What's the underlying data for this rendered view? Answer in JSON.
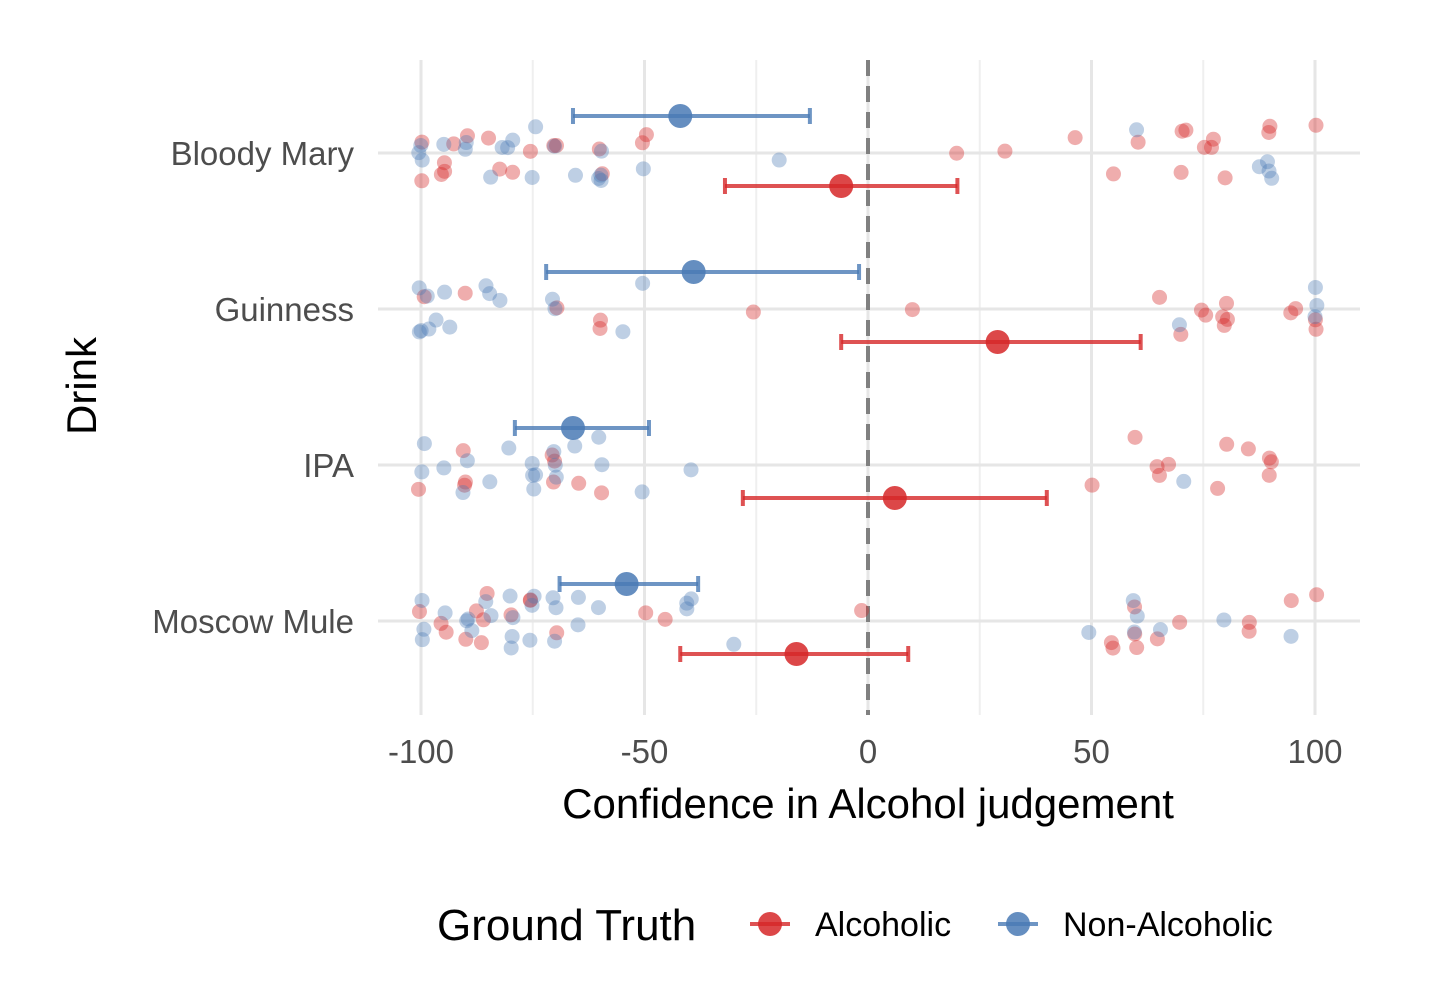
{
  "chart_data": {
    "type": "scatter",
    "xlabel": "Confidence in Alcohol judgement",
    "ylabel": "Drink",
    "xlim": [
      -102,
      110
    ],
    "x_ticks": [
      -100,
      -50,
      0,
      50,
      100
    ],
    "x_tick_labels": [
      "-100",
      "-50",
      "0",
      "50",
      "100"
    ],
    "categories": [
      "Bloody Mary",
      "Guinness",
      "IPA",
      "Moscow Mule"
    ],
    "reference_line": {
      "x": 0,
      "style": "dashed"
    },
    "grid": true,
    "legend": {
      "title": "Ground Truth",
      "position": "bottom"
    },
    "series": [
      {
        "name": "Alcoholic",
        "color": "#d62728",
        "summary": [
          {
            "category": "Bloody Mary",
            "mean": -6,
            "low": -32,
            "high": 20
          },
          {
            "category": "Guinness",
            "mean": 29,
            "low": -6,
            "high": 61
          },
          {
            "category": "IPA",
            "mean": 6,
            "low": -28,
            "high": 40
          },
          {
            "category": "Moscow Mule",
            "mean": -16,
            "low": -42,
            "high": 9
          }
        ],
        "points": [
          {
            "category": "Bloody Mary",
            "values": [
              -100,
              -100,
              -95,
              -95,
              -95,
              -93,
              -90,
              -85,
              -82,
              -80,
              -75,
              -70,
              -70,
              -60,
              -60,
              -50,
              -50,
              20,
              30,
              46,
              55,
              60,
              70,
              70,
              71,
              75,
              77,
              77,
              80,
              90,
              90,
              100
            ]
          },
          {
            "category": "Guinness",
            "values": [
              -99,
              -90,
              -70,
              -60,
              -60,
              -25,
              10,
              65,
              70,
              75,
              75,
              80,
              80,
              80,
              80,
              95,
              95,
              100,
              100
            ]
          },
          {
            "category": "IPA",
            "values": [
              -100,
              -90,
              -90,
              -90,
              -70,
              -70,
              -70,
              -65,
              -60,
              50,
              60,
              65,
              65,
              67,
              78,
              80,
              85,
              90,
              90,
              90
            ]
          },
          {
            "category": "Moscow Mule",
            "values": [
              -100,
              -95,
              -95,
              -90,
              -88,
              -86,
              -86,
              -85,
              -80,
              -75,
              -75,
              -70,
              -50,
              -45,
              -2,
              55,
              55,
              60,
              60,
              60,
              65,
              70,
              85,
              85,
              95,
              100
            ]
          }
        ]
      },
      {
        "name": "Non-Alcoholic",
        "color": "#4a7ab5",
        "summary": [
          {
            "category": "Bloody Mary",
            "mean": -42,
            "low": -66,
            "high": -13
          },
          {
            "category": "Guinness",
            "mean": -39,
            "low": -72,
            "high": -2
          },
          {
            "category": "IPA",
            "mean": -66,
            "low": -79,
            "high": -49
          },
          {
            "category": "Moscow Mule",
            "mean": -54,
            "low": -69,
            "high": -38
          }
        ],
        "points": [
          {
            "category": "Bloody Mary",
            "values": [
              -100,
              -100,
              -100,
              -95,
              -90,
              -90,
              -85,
              -82,
              -80,
              -80,
              -75,
              -75,
              -70,
              -65,
              -60,
              -60,
              -60,
              -60,
              -50,
              -20,
              60,
              87,
              90,
              90,
              90
            ]
          },
          {
            "category": "Guinness",
            "values": [
              -100,
              -100,
              -100,
              -99,
              -98,
              -97,
              -95,
              -94,
              -85,
              -85,
              -82,
              -70,
              -70,
              -55,
              -50,
              70,
              100,
              100,
              100
            ]
          },
          {
            "category": "IPA",
            "values": [
              -100,
              -99,
              -95,
              -90,
              -90,
              -85,
              -80,
              -75,
              -75,
              -75,
              -75,
              -70,
              -70,
              -70,
              -65,
              -60,
              -60,
              -50,
              -40,
              70
            ]
          },
          {
            "category": "Moscow Mule",
            "values": [
              -100,
              -100,
              -100,
              -95,
              -90,
              -90,
              -88,
              -85,
              -85,
              -80,
              -80,
              -80,
              -80,
              -75,
              -75,
              -75,
              -70,
              -70,
              -70,
              -65,
              -65,
              -60,
              -40,
              -40,
              -40,
              -30,
              50,
              60,
              60,
              60,
              65,
              80,
              95
            ]
          }
        ]
      }
    ]
  }
}
